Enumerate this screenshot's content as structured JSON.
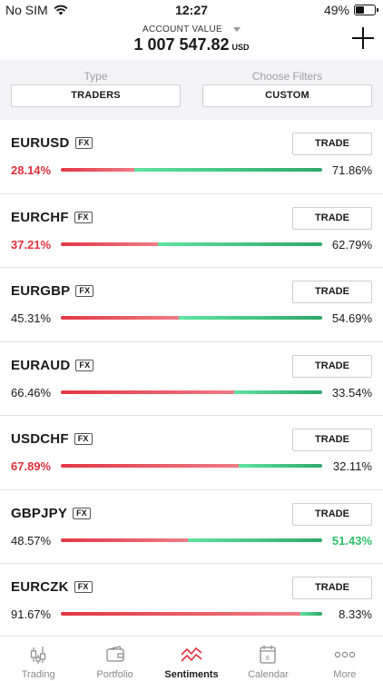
{
  "status": {
    "carrier": "No SIM",
    "time": "12:27",
    "battery": "49%",
    "battery_level": 0.49
  },
  "header": {
    "account_label": "ACCOUNT VALUE",
    "account_value": "1 007 547.82",
    "currency": "USD"
  },
  "filters": {
    "type_label": "Type",
    "type_value": "TRADERS",
    "filters_label": "Choose Filters",
    "filters_value": "CUSTOM"
  },
  "rows": [
    {
      "symbol": "EURUSD",
      "badge": "FX",
      "trade": "TRADE",
      "short": "28.14%",
      "long": "71.86%",
      "short_fraction": 0.2814,
      "highlight": "short"
    },
    {
      "symbol": "EURCHF",
      "badge": "FX",
      "trade": "TRADE",
      "short": "37.21%",
      "long": "62.79%",
      "short_fraction": 0.3721,
      "highlight": "short"
    },
    {
      "symbol": "EURGBP",
      "badge": "FX",
      "trade": "TRADE",
      "short": "45.31%",
      "long": "54.69%",
      "short_fraction": 0.4531,
      "highlight": "none"
    },
    {
      "symbol": "EURAUD",
      "badge": "FX",
      "trade": "TRADE",
      "short": "66.46%",
      "long": "33.54%",
      "short_fraction": 0.6646,
      "highlight": "none"
    },
    {
      "symbol": "USDCHF",
      "badge": "FX",
      "trade": "TRADE",
      "short": "67.89%",
      "long": "32.11%",
      "short_fraction": 0.6789,
      "highlight": "short"
    },
    {
      "symbol": "GBPJPY",
      "badge": "FX",
      "trade": "TRADE",
      "short": "48.57%",
      "long": "51.43%",
      "short_fraction": 0.4857,
      "highlight": "long"
    },
    {
      "symbol": "EURCZK",
      "badge": "FX",
      "trade": "TRADE",
      "short": "91.67%",
      "long": "8.33%",
      "short_fraction": 0.9167,
      "highlight": "none"
    }
  ],
  "tabs": [
    {
      "label": "Trading",
      "icon": "candlestick-icon"
    },
    {
      "label": "Portfolio",
      "icon": "wallet-icon"
    },
    {
      "label": "Sentiments",
      "icon": "sentiment-chart-icon",
      "active": true
    },
    {
      "label": "Calendar",
      "icon": "calendar-icon",
      "day": "6"
    },
    {
      "label": "More",
      "icon": "more-dots-icon"
    }
  ],
  "colors": {
    "short": "#e0303e",
    "long": "#2fbf6a",
    "sentiment_icon": "#e0303e"
  }
}
